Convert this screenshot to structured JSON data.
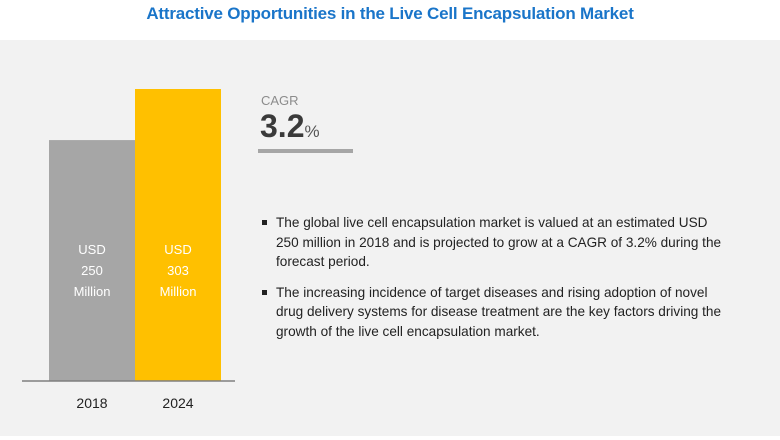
{
  "title": "Attractive Opportunities in the Live Cell Encapsulation Market",
  "cagr": {
    "label": "CAGR",
    "value": "3.2",
    "unit": "%"
  },
  "bullets": [
    "The global live cell encapsulation market is valued at an estimated USD 250 million in 2018 and is projected to grow at a CAGR of 3.2% during the forecast period.",
    "The increasing incidence of target diseases and rising adoption of novel drug delivery systems for disease treatment are the key factors driving the growth of the live cell encapsulation market."
  ],
  "chart_data": {
    "type": "bar",
    "categories": [
      "2018",
      "2024"
    ],
    "values": [
      250,
      303
    ],
    "bar_labels": [
      [
        "USD",
        "250",
        "Million"
      ],
      [
        "USD",
        "303",
        "Million"
      ]
    ],
    "colors": [
      "#a6a6a6",
      "#ffc000"
    ],
    "ylim": [
      0,
      303
    ],
    "grid": false
  }
}
